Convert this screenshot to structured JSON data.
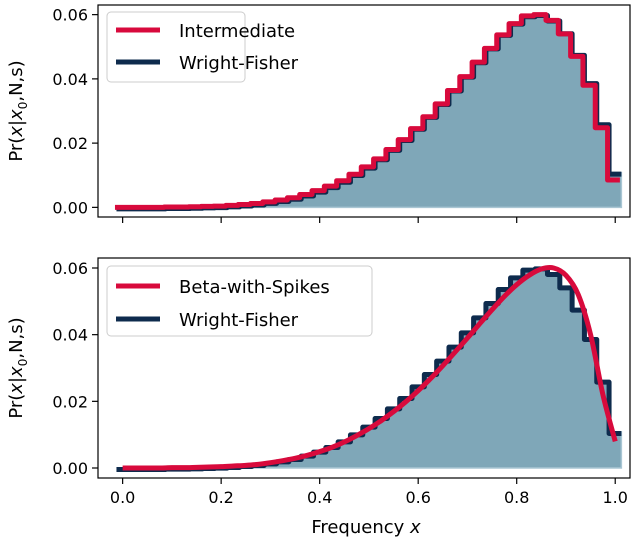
{
  "chart_data": [
    {
      "type": "line",
      "panel": "top",
      "ylabel": {
        "prefix": "Pr(",
        "var": "x",
        "bar": "|",
        "var0": "x",
        "sub": "0",
        "suffix": ",N,s)"
      },
      "xlabel": "",
      "xlim": [
        -0.05,
        1.03
      ],
      "ylim": [
        -0.003,
        0.063
      ],
      "xticks": [
        "0.0",
        "0.2",
        "0.4",
        "0.6",
        "0.8",
        "1.0"
      ],
      "yticks": [
        "0.00",
        "0.02",
        "0.04",
        "0.06"
      ],
      "legend_position": "top-left",
      "x": [
        0,
        0.025,
        0.05,
        0.075,
        0.1,
        0.125,
        0.15,
        0.175,
        0.2,
        0.225,
        0.25,
        0.275,
        0.3,
        0.325,
        0.35,
        0.375,
        0.4,
        0.425,
        0.45,
        0.475,
        0.5,
        0.525,
        0.55,
        0.575,
        0.6,
        0.625,
        0.65,
        0.675,
        0.7,
        0.725,
        0.75,
        0.775,
        0.8,
        0.825,
        0.85,
        0.875,
        0.9,
        0.925,
        0.95,
        0.975,
        1.0
      ],
      "series": [
        {
          "name": "Wright-Fisher",
          "style": "step",
          "color": "#0e2b4d",
          "values": [
            0,
            0,
            0,
            0,
            0.0001,
            0.0001,
            0.0002,
            0.0003,
            0.0004,
            0.0006,
            0.0009,
            0.0012,
            0.0017,
            0.0023,
            0.003,
            0.004,
            0.0052,
            0.0066,
            0.0083,
            0.0104,
            0.0127,
            0.0153,
            0.0182,
            0.0213,
            0.0248,
            0.0285,
            0.0325,
            0.0367,
            0.041,
            0.0455,
            0.0498,
            0.054,
            0.0575,
            0.0598,
            0.0602,
            0.0585,
            0.0545,
            0.0478,
            0.039,
            0.0262,
            0.0108
          ]
        },
        {
          "name": "Intermediate",
          "style": "step",
          "color": "#d80a3c",
          "values": [
            0,
            0,
            0,
            0,
            0.0001,
            0.0001,
            0.0002,
            0.0003,
            0.0004,
            0.0006,
            0.0009,
            0.0012,
            0.0017,
            0.0023,
            0.003,
            0.004,
            0.0052,
            0.0066,
            0.0083,
            0.0103,
            0.0126,
            0.0151,
            0.018,
            0.0211,
            0.0245,
            0.0282,
            0.0322,
            0.0364,
            0.0407,
            0.0452,
            0.0495,
            0.0537,
            0.0572,
            0.0596,
            0.06,
            0.0582,
            0.054,
            0.047,
            0.038,
            0.0248,
            0.0085
          ]
        }
      ]
    },
    {
      "type": "line",
      "panel": "bottom",
      "ylabel": {
        "prefix": "Pr(",
        "var": "x",
        "bar": "|",
        "var0": "x",
        "sub": "0",
        "suffix": ",N,s)"
      },
      "xlabel": {
        "text": "Frequency ",
        "var": "x"
      },
      "xlim": [
        -0.05,
        1.03
      ],
      "ylim": [
        -0.003,
        0.063
      ],
      "xticks": [
        "0.0",
        "0.2",
        "0.4",
        "0.6",
        "0.8",
        "1.0"
      ],
      "yticks": [
        "0.00",
        "0.02",
        "0.04",
        "0.06"
      ],
      "legend_position": "top-left",
      "x": [
        0,
        0.025,
        0.05,
        0.075,
        0.1,
        0.125,
        0.15,
        0.175,
        0.2,
        0.225,
        0.25,
        0.275,
        0.3,
        0.325,
        0.35,
        0.375,
        0.4,
        0.425,
        0.45,
        0.475,
        0.5,
        0.525,
        0.55,
        0.575,
        0.6,
        0.625,
        0.65,
        0.675,
        0.7,
        0.725,
        0.75,
        0.775,
        0.8,
        0.825,
        0.85,
        0.875,
        0.9,
        0.925,
        0.95,
        0.975,
        1.0
      ],
      "series": [
        {
          "name": "Wright-Fisher",
          "style": "step",
          "color": "#0e2b4d",
          "values": [
            0,
            0,
            0,
            0,
            0.0001,
            0.0001,
            0.0002,
            0.0003,
            0.0004,
            0.0006,
            0.0009,
            0.0012,
            0.0017,
            0.0023,
            0.003,
            0.004,
            0.0052,
            0.0066,
            0.0083,
            0.0104,
            0.0127,
            0.0153,
            0.0182,
            0.0213,
            0.0248,
            0.0285,
            0.0325,
            0.0367,
            0.041,
            0.0455,
            0.0498,
            0.054,
            0.0575,
            0.0598,
            0.0602,
            0.0585,
            0.0545,
            0.0478,
            0.039,
            0.0262,
            0.0108
          ]
        },
        {
          "name": "Beta-with-Spikes",
          "style": "smooth",
          "color": "#d80a3c",
          "values": [
            0,
            0,
            0,
            0,
            0.0001,
            0.0001,
            0.0002,
            0.0003,
            0.0004,
            0.0006,
            0.0008,
            0.0011,
            0.0016,
            0.0022,
            0.0029,
            0.0038,
            0.0049,
            0.0062,
            0.0078,
            0.0097,
            0.0118,
            0.0142,
            0.0169,
            0.0199,
            0.0232,
            0.0268,
            0.0307,
            0.0348,
            0.039,
            0.0433,
            0.0475,
            0.0515,
            0.055,
            0.0578,
            0.0597,
            0.06,
            0.0578,
            0.052,
            0.04,
            0.022,
            0.008
          ]
        }
      ]
    }
  ]
}
